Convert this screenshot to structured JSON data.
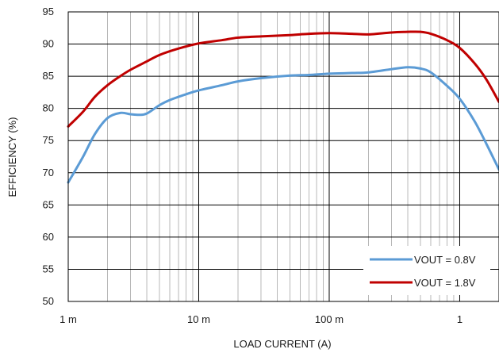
{
  "chart_data": {
    "type": "line",
    "xlabel": "LOAD CURRENT (A)",
    "ylabel": "EFFICIENCY (%)",
    "x_scale": "log",
    "xlim": [
      0.001,
      2
    ],
    "ylim": [
      50,
      95
    ],
    "x_ticks": [
      {
        "value": 0.001,
        "label": "1 m"
      },
      {
        "value": 0.01,
        "label": "10 m"
      },
      {
        "value": 0.1,
        "label": "100 m"
      },
      {
        "value": 1,
        "label": "1"
      }
    ],
    "y_ticks": [
      {
        "value": 50,
        "label": "50"
      },
      {
        "value": 55,
        "label": "55"
      },
      {
        "value": 60,
        "label": "60"
      },
      {
        "value": 65,
        "label": "65"
      },
      {
        "value": 70,
        "label": "70"
      },
      {
        "value": 75,
        "label": "75"
      },
      {
        "value": 80,
        "label": "80"
      },
      {
        "value": 85,
        "label": "85"
      },
      {
        "value": 90,
        "label": "90"
      },
      {
        "value": 95,
        "label": "95"
      }
    ],
    "grid": true,
    "legend_position": "bottom-right",
    "series": [
      {
        "name": "VOUT = 0.8V",
        "color": "#5b9bd5",
        "points": [
          [
            0.001,
            68.5
          ],
          [
            0.0013,
            72.5
          ],
          [
            0.0016,
            76.0
          ],
          [
            0.002,
            78.5
          ],
          [
            0.0025,
            79.3
          ],
          [
            0.003,
            79.1
          ],
          [
            0.0035,
            79.0
          ],
          [
            0.004,
            79.2
          ],
          [
            0.005,
            80.5
          ],
          [
            0.006,
            81.3
          ],
          [
            0.008,
            82.2
          ],
          [
            0.01,
            82.8
          ],
          [
            0.015,
            83.6
          ],
          [
            0.02,
            84.2
          ],
          [
            0.03,
            84.7
          ],
          [
            0.05,
            85.1
          ],
          [
            0.07,
            85.2
          ],
          [
            0.1,
            85.4
          ],
          [
            0.15,
            85.5
          ],
          [
            0.2,
            85.6
          ],
          [
            0.3,
            86.1
          ],
          [
            0.4,
            86.4
          ],
          [
            0.5,
            86.2
          ],
          [
            0.6,
            85.6
          ],
          [
            0.8,
            83.5
          ],
          [
            1.0,
            81.5
          ],
          [
            1.3,
            78.0
          ],
          [
            1.6,
            74.5
          ],
          [
            2.0,
            70.5
          ]
        ]
      },
      {
        "name": "VOUT = 1.8V",
        "color": "#c00000",
        "points": [
          [
            0.001,
            77.2
          ],
          [
            0.0013,
            79.5
          ],
          [
            0.0016,
            81.8
          ],
          [
            0.002,
            83.6
          ],
          [
            0.0025,
            85.0
          ],
          [
            0.003,
            86.0
          ],
          [
            0.004,
            87.3
          ],
          [
            0.005,
            88.3
          ],
          [
            0.007,
            89.3
          ],
          [
            0.01,
            90.1
          ],
          [
            0.015,
            90.6
          ],
          [
            0.02,
            91.0
          ],
          [
            0.03,
            91.2
          ],
          [
            0.05,
            91.4
          ],
          [
            0.07,
            91.6
          ],
          [
            0.1,
            91.7
          ],
          [
            0.15,
            91.6
          ],
          [
            0.2,
            91.5
          ],
          [
            0.3,
            91.8
          ],
          [
            0.4,
            91.9
          ],
          [
            0.5,
            91.9
          ],
          [
            0.6,
            91.6
          ],
          [
            0.8,
            90.6
          ],
          [
            1.0,
            89.4
          ],
          [
            1.3,
            87.0
          ],
          [
            1.6,
            84.5
          ],
          [
            2.0,
            81.0
          ]
        ]
      }
    ]
  }
}
